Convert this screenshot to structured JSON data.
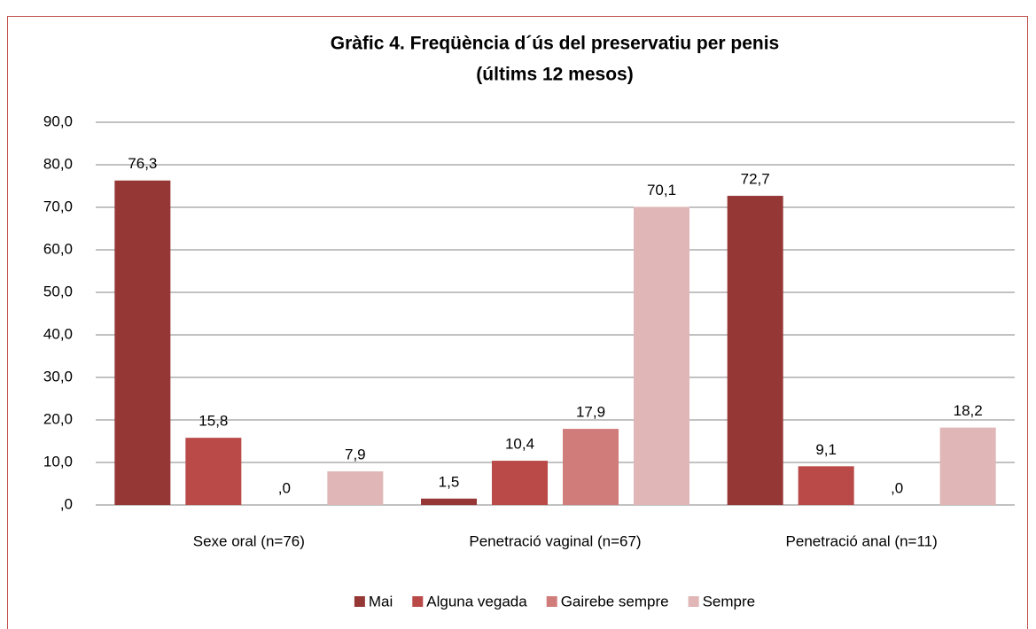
{
  "chart_data": {
    "type": "bar",
    "title": "Gràfic 4. Freqüència d´ús del preservatiu per penis",
    "subtitle": "(últims 12 mesos)",
    "categories": [
      "Sexe oral (n=76)",
      "Penetració vaginal (n=67)",
      "Penetració anal (n=11)"
    ],
    "series": [
      {
        "name": "Mai",
        "color": "#953735",
        "values": [
          76.3,
          1.5,
          72.7
        ],
        "value_labels": [
          "76,3",
          "1,5",
          "72,7"
        ]
      },
      {
        "name": "Alguna vegada",
        "color": "#b94a48",
        "values": [
          15.8,
          10.4,
          9.1
        ],
        "value_labels": [
          "15,8",
          "10,4",
          "9,1"
        ]
      },
      {
        "name": "Gairebe sempre",
        "color": "#d07c7b",
        "values": [
          0,
          17.9,
          0
        ],
        "value_labels": [
          ",0",
          "17,9",
          ",0"
        ]
      },
      {
        "name": "Sempre",
        "color": "#e0b6b6",
        "values": [
          7.9,
          70.1,
          18.2
        ],
        "value_labels": [
          "7,9",
          "70,1",
          "18,2"
        ]
      }
    ],
    "ylim": [
      0,
      90
    ],
    "yticks": [
      {
        "value": 0,
        "label": ",0"
      },
      {
        "value": 10,
        "label": "10,0"
      },
      {
        "value": 20,
        "label": "20,0"
      },
      {
        "value": 30,
        "label": "30,0"
      },
      {
        "value": 40,
        "label": "40,0"
      },
      {
        "value": 50,
        "label": "50,0"
      },
      {
        "value": 60,
        "label": "60,0"
      },
      {
        "value": 70,
        "label": "70,0"
      },
      {
        "value": 80,
        "label": "80,0"
      },
      {
        "value": 90,
        "label": "90,0"
      }
    ],
    "grid": true,
    "legend": "bottom"
  }
}
